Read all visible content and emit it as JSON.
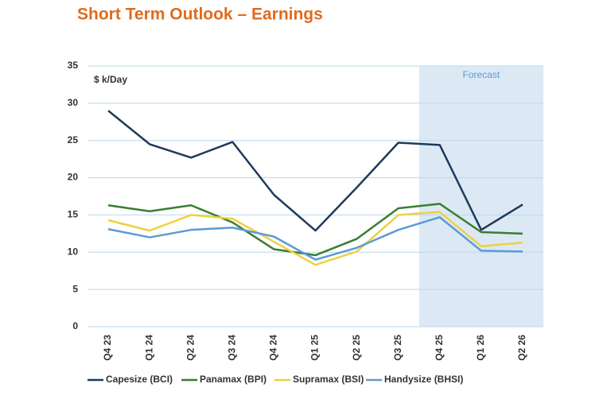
{
  "chart_data": {
    "type": "line",
    "title": "Short Term Outlook – Earnings",
    "y_label": "$ k/Day",
    "categories": [
      "Q4 23",
      "Q1 24",
      "Q2 24",
      "Q3 24",
      "Q4 24",
      "Q1 25",
      "Q2 25",
      "Q3 25",
      "Q4 25",
      "Q1 26",
      "Q2 26"
    ],
    "series": [
      {
        "name": "Capesize (BCI)",
        "color": "#1f3a5a",
        "values": [
          29,
          24.5,
          22.7,
          24.8,
          17.7,
          12.9,
          18.7,
          24.7,
          24.4,
          13,
          16.4
        ]
      },
      {
        "name": "Panamax (BPI)",
        "color": "#3a7d32",
        "values": [
          16.3,
          15.5,
          16.3,
          14,
          10.4,
          9.6,
          11.8,
          15.9,
          16.5,
          12.7,
          12.5
        ]
      },
      {
        "name": "Supramax (BSI)",
        "color": "#f0d040",
        "values": [
          14.3,
          12.9,
          15,
          14.5,
          11.4,
          8.3,
          10.1,
          15,
          15.4,
          10.8,
          11.3
        ]
      },
      {
        "name": "Handysize (BHSI)",
        "color": "#5b9bd5",
        "values": [
          13.1,
          12,
          13,
          13.3,
          12.1,
          9,
          10.6,
          13,
          14.7,
          10.2,
          10.1
        ]
      }
    ],
    "ylim": [
      0,
      35
    ],
    "yticks": [
      0,
      5,
      10,
      15,
      20,
      25,
      30,
      35
    ],
    "grid": true,
    "shaded_region": {
      "label": "Forecast",
      "start": "Q4 25"
    },
    "legend": "bottom"
  }
}
